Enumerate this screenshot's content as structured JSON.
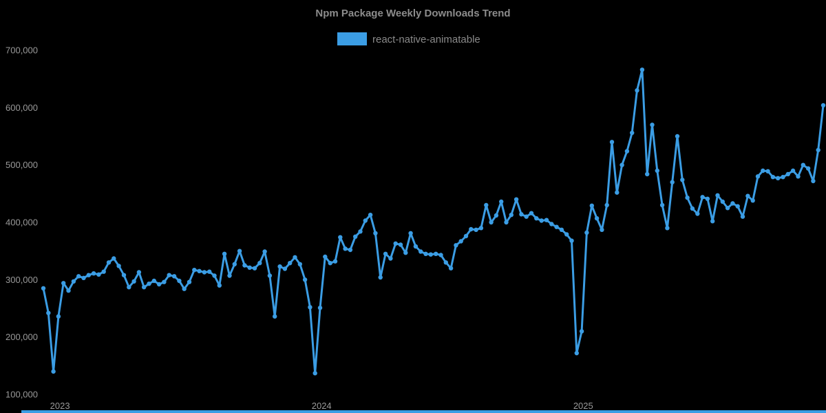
{
  "header": {
    "title": "Npm Package Weekly Downloads Trend"
  },
  "legend": {
    "label": "react-native-animatable",
    "position": "top-center"
  },
  "colors": {
    "background": "#000000",
    "line": "#3b9de4",
    "marker": "#3b9de4",
    "title_text": "#8c8c8c",
    "legend_text": "#8a8a8a",
    "tick_text": "#9a9a9a",
    "bottom_bar": "#3b9de4"
  },
  "chart_data": {
    "type": "line",
    "title": "Npm Package Weekly Downloads Trend",
    "xlabel": "",
    "ylabel": "",
    "grid": false,
    "legend_position": "top-center",
    "ylim": [
      100000,
      700000
    ],
    "y_ticks": [
      {
        "value": 100000,
        "label": "100,000"
      },
      {
        "value": 200000,
        "label": "200,000"
      },
      {
        "value": 300000,
        "label": "300,000"
      },
      {
        "value": 400000,
        "label": "400,000"
      },
      {
        "value": 500000,
        "label": "500,000"
      },
      {
        "value": 600000,
        "label": "600,000"
      },
      {
        "value": 700000,
        "label": "700,000"
      }
    ],
    "x_ticks": [
      {
        "label": "2023",
        "index": 3.3
      },
      {
        "label": "2024",
        "index": 55.3
      },
      {
        "label": "2025",
        "index": 107.3
      }
    ],
    "series": [
      {
        "name": "react-native-animatable",
        "unit": "weekly downloads",
        "cadence": "weekly",
        "values": [
          285000,
          242000,
          140000,
          236000,
          294000,
          281000,
          297000,
          306000,
          303000,
          308000,
          311000,
          309000,
          314000,
          330000,
          337000,
          324000,
          308000,
          287000,
          297000,
          313000,
          287000,
          293000,
          298000,
          292000,
          296000,
          308000,
          306000,
          298000,
          284000,
          296000,
          317000,
          315000,
          313000,
          314000,
          307000,
          290000,
          345000,
          307000,
          327000,
          350000,
          325000,
          321000,
          320000,
          329000,
          349000,
          307000,
          236000,
          323000,
          319000,
          329000,
          339000,
          327000,
          300000,
          252000,
          137000,
          251000,
          340000,
          329000,
          332000,
          374000,
          354000,
          352000,
          375000,
          384000,
          403000,
          413000,
          381000,
          304000,
          345000,
          337000,
          363000,
          361000,
          347000,
          381000,
          358000,
          349000,
          345000,
          344000,
          345000,
          343000,
          330000,
          320000,
          360000,
          367000,
          376000,
          388000,
          387000,
          390000,
          430000,
          400000,
          412000,
          436000,
          400000,
          413000,
          440000,
          414000,
          410000,
          416000,
          407000,
          403000,
          404000,
          397000,
          392000,
          387000,
          379000,
          368000,
          172000,
          210000,
          382000,
          429000,
          407000,
          387000,
          430000,
          540000,
          452000,
          500000,
          524000,
          556000,
          630000,
          666000,
          484000,
          570000,
          490000,
          430000,
          390000,
          470000,
          550000,
          474000,
          443000,
          424000,
          415000,
          444000,
          441000,
          402000,
          447000,
          436000,
          425000,
          433000,
          428000,
          410000,
          446000,
          438000,
          480000,
          490000,
          489000,
          479000,
          477000,
          479000,
          484000,
          490000,
          480000,
          500000,
          494000,
          472000,
          526000,
          604000
        ]
      }
    ]
  }
}
